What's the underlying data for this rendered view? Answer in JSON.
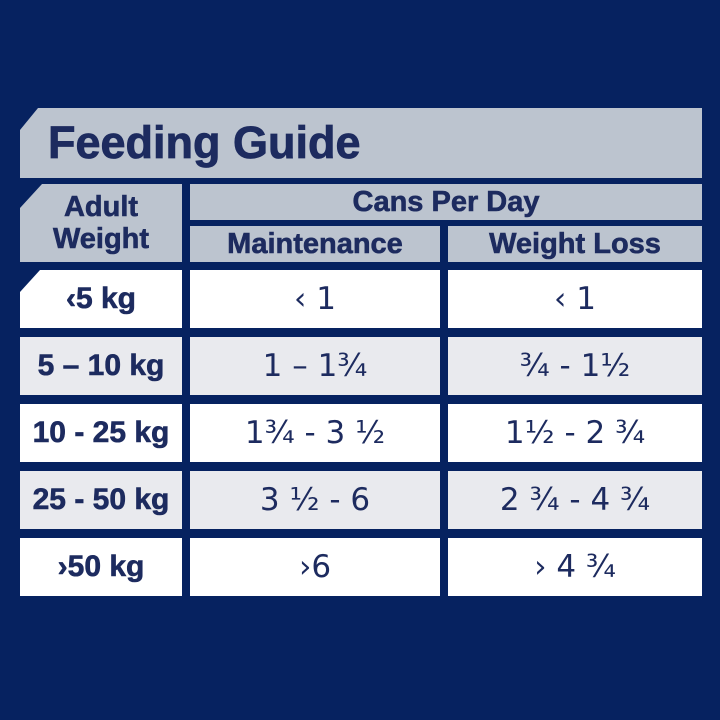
{
  "title": "Feeding Guide",
  "table": {
    "adult_weight_header": [
      "Adult",
      "Weight"
    ],
    "group_header": "Cans Per Day",
    "sub_headers": [
      "Maintenance",
      "Weight Loss"
    ],
    "rows": [
      {
        "weight": "‹5 kg",
        "maintenance": "‹ 1",
        "weight_loss": "‹ 1"
      },
      {
        "weight": "5 – 10 kg",
        "maintenance": "1 – 1¾",
        "weight_loss": "¾ - 1½"
      },
      {
        "weight": "10 - 25 kg",
        "maintenance": "1¾ - 3 ½",
        "weight_loss": "1½ - 2 ¾"
      },
      {
        "weight": "25 - 50 kg",
        "maintenance": "3 ½ - 6",
        "weight_loss": "2 ¾ - 4 ¾"
      },
      {
        "weight": "›50 kg",
        "maintenance": "›6",
        "weight_loss": "› 4 ¾"
      }
    ]
  },
  "colors": {
    "background_navy": "#062260",
    "banner_gray": "#bcc4cf",
    "row_alt_gray": "#e9eaee",
    "row_white": "#ffffff",
    "text_navy": "#1d2b5f"
  }
}
